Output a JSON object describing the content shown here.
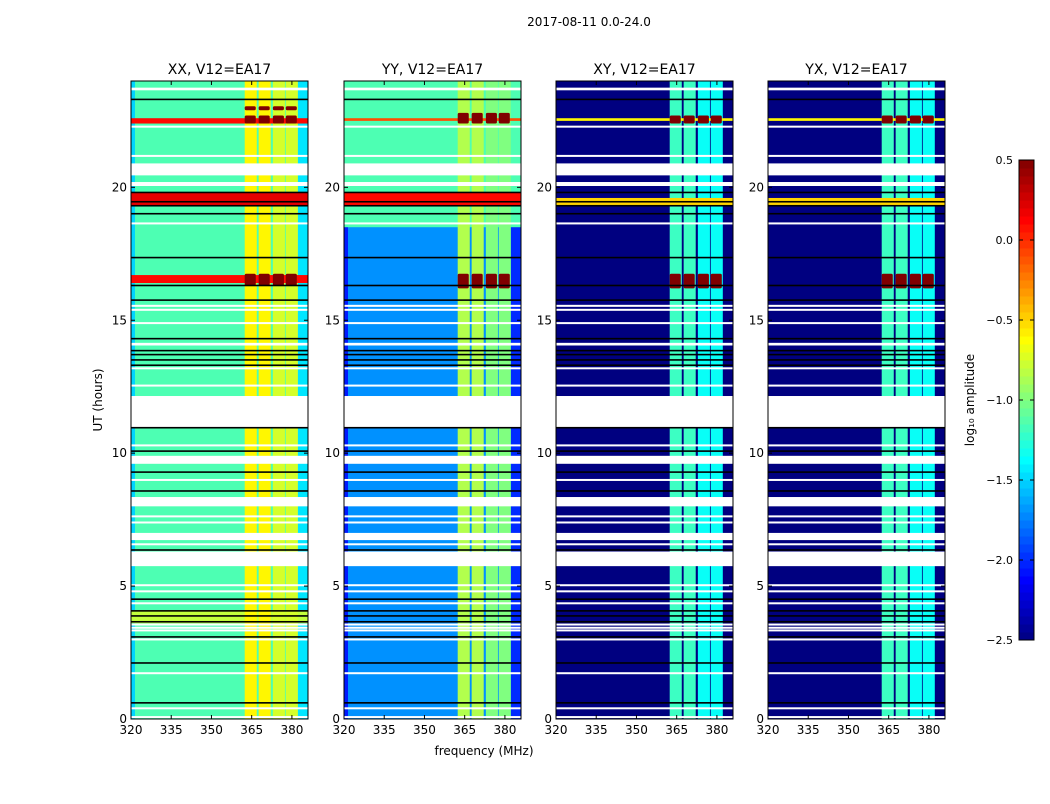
{
  "chart_data": {
    "type": "heatmap",
    "title": "2017-08-11 0.0-24.0",
    "xlabel": "frequency (MHz)",
    "ylabel": "UT (hours)",
    "xlim": [
      320,
      386
    ],
    "ylim": [
      0,
      24
    ],
    "xticks": [
      320,
      335,
      350,
      365,
      380
    ],
    "yticks": [
      0,
      5,
      10,
      15,
      20
    ],
    "grid": false,
    "colorbar": {
      "label": "log₁₀ amplitude",
      "colormap": "jet",
      "clim": [
        -2.5,
        0.5
      ],
      "ticks": [
        0.5,
        0.0,
        -0.5,
        -1.0,
        -1.5,
        -2.0,
        -2.5
      ]
    },
    "rfi_channel_blocks_mhz": [
      [
        362.4,
        366.9
      ],
      [
        367.6,
        372.1
      ],
      [
        372.9,
        377.4
      ],
      [
        377.7,
        382.2
      ]
    ],
    "flagged_ut_ranges": [
      [
        23.65,
        23.75
      ],
      [
        22.25,
        22.32
      ],
      [
        21.15,
        21.22
      ],
      [
        20.45,
        20.9
      ],
      [
        20.05,
        20.2
      ],
      [
        18.62,
        18.68
      ],
      [
        15.52,
        15.58
      ],
      [
        15.37,
        15.43
      ],
      [
        14.87,
        14.93
      ],
      [
        14.05,
        14.15
      ],
      [
        13.17,
        13.23
      ],
      [
        12.52,
        12.58
      ],
      [
        10.95,
        12.15
      ],
      [
        10.27,
        10.33
      ],
      [
        9.6,
        9.9
      ],
      [
        8.97,
        9.03
      ],
      [
        8.0,
        8.35
      ],
      [
        7.6,
        7.66
      ],
      [
        7.37,
        7.43
      ],
      [
        6.73,
        7.0
      ],
      [
        6.55,
        6.61
      ],
      [
        5.75,
        6.3
      ],
      [
        5.01,
        5.07
      ],
      [
        4.78,
        4.84
      ],
      [
        4.33,
        4.39
      ],
      [
        3.55,
        3.59
      ],
      [
        3.43,
        3.47
      ],
      [
        3.33,
        3.37
      ],
      [
        2.97,
        3.03
      ],
      [
        1.7,
        1.76
      ],
      [
        0.38,
        0.44
      ],
      [
        0.05,
        0.11
      ]
    ],
    "gap_lines_ut": [
      23.3,
      19.8,
      19.45,
      19.3,
      19.0,
      17.35,
      16.3,
      15.75,
      14.3,
      13.85,
      13.7,
      13.5,
      13.3,
      10.95,
      10.07,
      9.28,
      8.57,
      6.35,
      4.5,
      4.06,
      3.87,
      3.65,
      3.08,
      2.1,
      0.6
    ],
    "panels": [
      {
        "title": "XX, V12=EA17",
        "background": -1.15,
        "rfi_columns": -0.7,
        "bright_ut_ranges": [
          [
            3.6,
            4.1,
            -0.8
          ]
        ],
        "hot_rows": [
          [
            22.4,
            22.6,
            0.1
          ],
          [
            19.3,
            19.8,
            0.2
          ],
          [
            16.4,
            16.7,
            0.1
          ]
        ],
        "saturated_blocks_ut": [
          [
            22.4,
            22.7
          ],
          [
            22.9,
            23.05
          ],
          [
            16.3,
            16.75
          ]
        ]
      },
      {
        "title": "YY, V12=EA17",
        "background": -1.7,
        "rfi_columns": -0.95,
        "bright_ut_ranges": [
          [
            18.5,
            24,
            -1.15
          ]
        ],
        "hot_rows": [
          [
            22.5,
            22.6,
            -0.1
          ],
          [
            19.3,
            19.8,
            0.1
          ]
        ],
        "saturated_blocks_ut": [
          [
            22.4,
            22.8
          ],
          [
            16.2,
            16.75
          ]
        ]
      },
      {
        "title": "XY, V12=EA17",
        "background": -2.5,
        "rfi_columns": -1.3,
        "bright_ut_ranges": [],
        "hot_rows": [
          [
            22.5,
            22.6,
            -0.6
          ],
          [
            19.3,
            19.6,
            -0.5
          ]
        ],
        "saturated_blocks_ut": [
          [
            22.4,
            22.7
          ],
          [
            16.2,
            16.75
          ]
        ]
      },
      {
        "title": "YX, V12=EA17",
        "background": -2.5,
        "rfi_columns": -1.3,
        "bright_ut_ranges": [],
        "hot_rows": [
          [
            22.5,
            22.6,
            -0.6
          ],
          [
            19.3,
            19.6,
            -0.5
          ]
        ],
        "saturated_blocks_ut": [
          [
            22.4,
            22.7
          ],
          [
            16.2,
            16.75
          ]
        ]
      }
    ]
  }
}
